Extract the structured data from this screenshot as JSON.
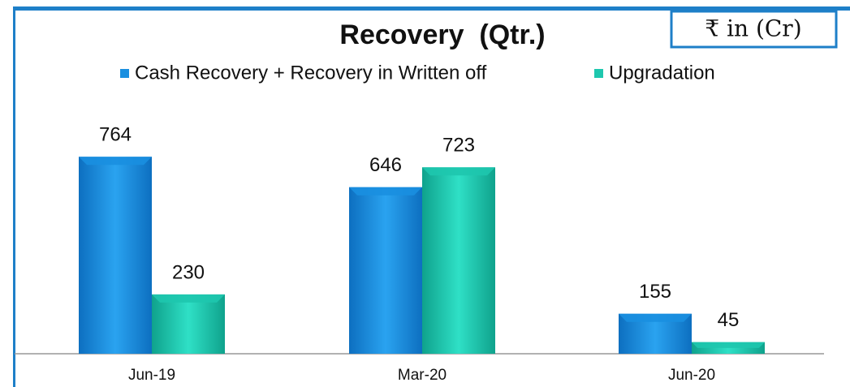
{
  "chart_data": {
    "type": "bar",
    "title": "Recovery  (Qtr.)",
    "unit_note": "₹ in (Cr)",
    "categories": [
      "Jun-19",
      "Mar-20",
      "Jun-20"
    ],
    "series": [
      {
        "name": "Cash Recovery + Recovery in Written off",
        "color": "#1a8fe0",
        "values": [
          764,
          646,
          155
        ]
      },
      {
        "name": "Upgradation",
        "color": "#1ec7ae",
        "values": [
          230,
          723,
          45
        ]
      }
    ],
    "ylim": [
      0,
      900
    ],
    "legend": "top"
  }
}
